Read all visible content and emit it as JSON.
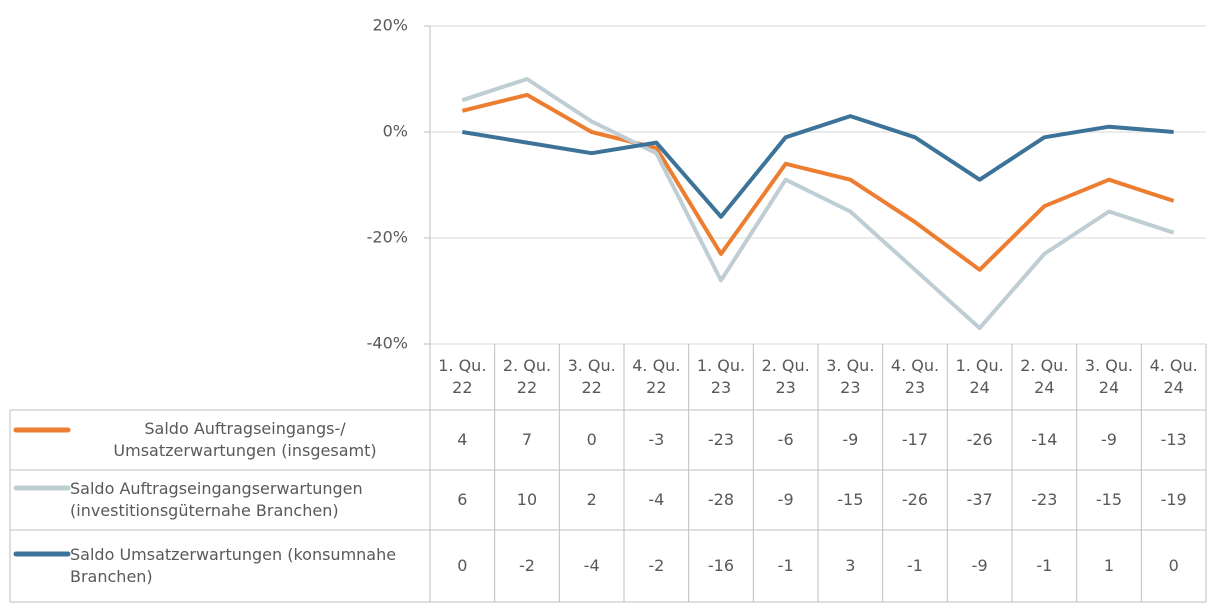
{
  "chart_data": {
    "type": "line",
    "categories": [
      "1. Qu. 22",
      "2. Qu. 22",
      "3. Qu. 22",
      "4. Qu. 22",
      "1. Qu. 23",
      "2. Qu. 23",
      "3. Qu. 23",
      "4. Qu. 23",
      "1. Qu. 24",
      "2. Qu. 24",
      "3. Qu. 24",
      "4. Qu. 24"
    ],
    "series": [
      {
        "name": "Saldo Auftragseingangs-/ Umsatzerwartungen (insgesamt)",
        "color": "#ed7d31",
        "values": [
          4,
          7,
          0,
          -3,
          -23,
          -6,
          -9,
          -17,
          -26,
          -14,
          -9,
          -13
        ]
      },
      {
        "name": "Saldo Auftragseingangserwartungen (investitionsgüternahe Branchen)",
        "color": "#bfcdd4",
        "values": [
          6,
          10,
          2,
          -4,
          -28,
          -9,
          -15,
          -26,
          -37,
          -23,
          -15,
          -19
        ]
      },
      {
        "name": "Saldo Umsatzerwartungen (konsumnahe Branchen)",
        "color": "#3d7398",
        "values": [
          0,
          -2,
          -4,
          -2,
          -16,
          -1,
          3,
          -1,
          -9,
          -1,
          1,
          0
        ]
      }
    ],
    "ylim": [
      -40,
      20
    ],
    "yticks": [
      {
        "value": -40,
        "label": "-40%"
      },
      {
        "value": -20,
        "label": "-20%"
      },
      {
        "value": 0,
        "label": "0%"
      },
      {
        "value": 20,
        "label": "20%"
      }
    ],
    "grid": true
  }
}
